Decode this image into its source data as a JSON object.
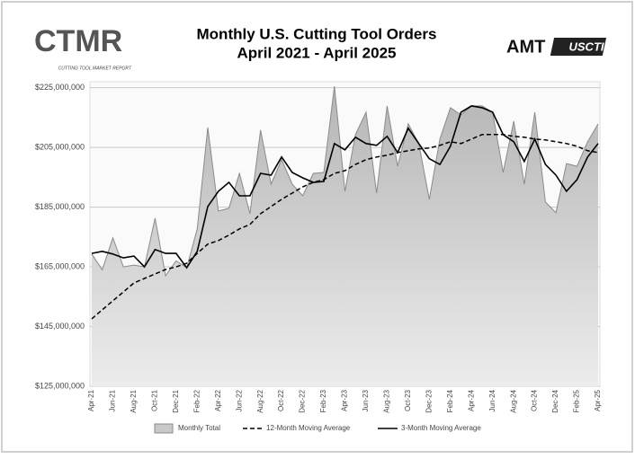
{
  "branding": {
    "left_logo": "CTMR",
    "left_tagline": "CUTTING TOOL MARKET REPORT",
    "right_logo": "AMT",
    "right_logo_2": "USCTI"
  },
  "chart_data": {
    "type": "line",
    "title": "Monthly U.S. Cutting Tool Orders",
    "subtitle": "April 2021 - April 2025",
    "categories": [
      "Apr-21",
      null,
      "Jun-21",
      null,
      "Aug-21",
      null,
      "Oct-21",
      null,
      "Dec-21",
      null,
      "Feb-22",
      null,
      "Apr-22",
      null,
      "Jun-22",
      null,
      "Aug-22",
      null,
      "Oct-22",
      null,
      "Dec-22",
      null,
      "Feb-23",
      null,
      "Apr-23",
      null,
      "Jun-23",
      null,
      "Aug-23",
      null,
      "Oct-23",
      null,
      "Dec-23",
      null,
      "Feb-24",
      null,
      "Apr-24",
      null,
      "Jun-24",
      null,
      "Aug-24",
      null,
      "Oct-24",
      null,
      "Dec-24",
      null,
      "Feb-25",
      null,
      "Apr-25"
    ],
    "series": [
      {
        "name": "Monthly Total",
        "style": "area",
        "color": "#8a8a8a",
        "values": [
          169300000,
          164000000,
          174700000,
          165000000,
          165600000,
          165000000,
          181300000,
          162000000,
          167000000,
          164700000,
          177700000,
          211700000,
          183700000,
          184600000,
          196300000,
          182800000,
          210800000,
          192700000,
          200900000,
          192700000,
          188800000,
          196300000,
          196600000,
          225500000,
          190300000,
          209300000,
          216800000,
          189700000,
          218900000,
          198700000,
          212900000,
          206300000,
          187600000,
          207800000,
          218300000,
          215900000,
          218900000,
          218900000,
          216800000,
          196600000,
          213800000,
          192700000,
          216800000,
          186700000,
          183100000,
          199600000,
          198700000,
          206900000,
          212900000
        ]
      },
      {
        "name": "12-Month Moving Average",
        "style": "dashed",
        "color": "#000000",
        "values": [
          147600000,
          150600000,
          153600000,
          156600000,
          159600000,
          161100000,
          162600000,
          164100000,
          165000000,
          166200000,
          169500000,
          172600000,
          173800000,
          175600000,
          177700000,
          179200000,
          182800000,
          185200000,
          187600000,
          189700000,
          191800000,
          193300000,
          194200000,
          196300000,
          197200000,
          199300000,
          200900000,
          201800000,
          202400000,
          203300000,
          203900000,
          204500000,
          204800000,
          205700000,
          206900000,
          206300000,
          207800000,
          209300000,
          209300000,
          209300000,
          208700000,
          208400000,
          207800000,
          207500000,
          206900000,
          206300000,
          205400000,
          203900000,
          203300000
        ]
      },
      {
        "name": "3-Month Moving Average",
        "style": "solid",
        "color": "#000000",
        "values": [
          169500000,
          170200000,
          169300000,
          168000000,
          168600000,
          165000000,
          170800000,
          169500000,
          169500000,
          164700000,
          170200000,
          185200000,
          190300000,
          193300000,
          188800000,
          188800000,
          196300000,
          195700000,
          201800000,
          196600000,
          194800000,
          193300000,
          193600000,
          206300000,
          204200000,
          208400000,
          206300000,
          205700000,
          208700000,
          203300000,
          211400000,
          206300000,
          201200000,
          199300000,
          205400000,
          216800000,
          218900000,
          218300000,
          216800000,
          209300000,
          206900000,
          200300000,
          207800000,
          199300000,
          195700000,
          190300000,
          194200000,
          201800000,
          206300000
        ]
      }
    ],
    "ylim": [
      125000000,
      227000000
    ],
    "yticks": [
      {
        "value": 125000000,
        "label": "$125,000,000"
      },
      {
        "value": 145000000,
        "label": "$145,000,000"
      },
      {
        "value": 165000000,
        "label": "$165,000,000"
      },
      {
        "value": 185000000,
        "label": "$185,000,000"
      },
      {
        "value": 205000000,
        "label": "$205,000,000"
      },
      {
        "value": 225000000,
        "label": "$225,000,000"
      }
    ],
    "grid": true,
    "legend": "bottom"
  }
}
